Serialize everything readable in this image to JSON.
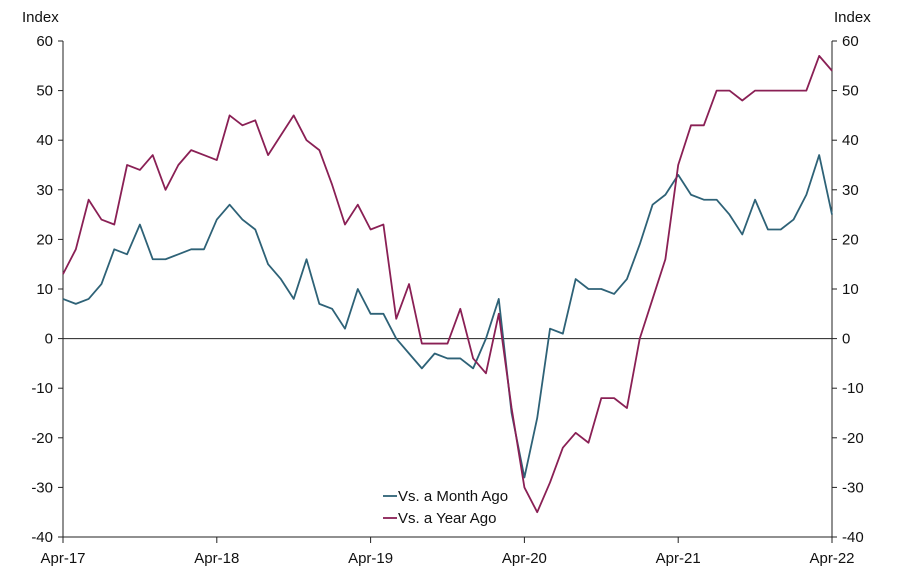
{
  "chart_data": {
    "type": "line",
    "left_axis_label": "Index",
    "right_axis_label": "Index",
    "ylim": [
      -40,
      60
    ],
    "yticks": [
      60,
      50,
      40,
      30,
      20,
      10,
      0,
      -10,
      -20,
      -30,
      -40
    ],
    "ytick_labels": [
      "60",
      "50",
      "40",
      "30",
      "20",
      "10",
      "0",
      "-10",
      "-20",
      "-30",
      "-40"
    ],
    "x_ticks": [
      "Apr-17",
      "Apr-18",
      "Apr-19",
      "Apr-20",
      "Apr-21",
      "Apr-22"
    ],
    "x_start": "2017-04",
    "x_end": "2022-04",
    "zero_line": true,
    "grid": false,
    "legend_position": "bottom-center",
    "series": [
      {
        "name": "Vs. a Month Ago",
        "color": "#2e6277",
        "values": [
          8,
          7,
          8,
          11,
          18,
          17,
          23,
          16,
          16,
          17,
          18,
          18,
          24,
          27,
          24,
          22,
          15,
          12,
          8,
          16,
          7,
          6,
          2,
          10,
          5,
          5,
          0,
          -3,
          -6,
          -3,
          -4,
          -4,
          -6,
          0,
          8,
          -15,
          -28,
          -16,
          2,
          1,
          12,
          10,
          10,
          9,
          12,
          19,
          27,
          29,
          33,
          29,
          28,
          28,
          25,
          21,
          28,
          22,
          22,
          24,
          29,
          37,
          25
        ]
      },
      {
        "name": "Vs. a Year Ago",
        "color": "#8a2055",
        "values": [
          13,
          18,
          28,
          24,
          23,
          35,
          34,
          37,
          30,
          35,
          38,
          37,
          36,
          45,
          43,
          44,
          37,
          41,
          45,
          40,
          38,
          31,
          23,
          27,
          22,
          23,
          4,
          11,
          -1,
          -1,
          -1,
          6,
          -4,
          -7,
          5,
          -14,
          -30,
          -35,
          -29,
          -22,
          -19,
          -21,
          -12,
          -12,
          -14,
          0,
          8,
          16,
          35,
          43,
          43,
          50,
          50,
          48,
          50,
          50,
          50,
          50,
          50,
          57,
          54
        ]
      }
    ]
  }
}
